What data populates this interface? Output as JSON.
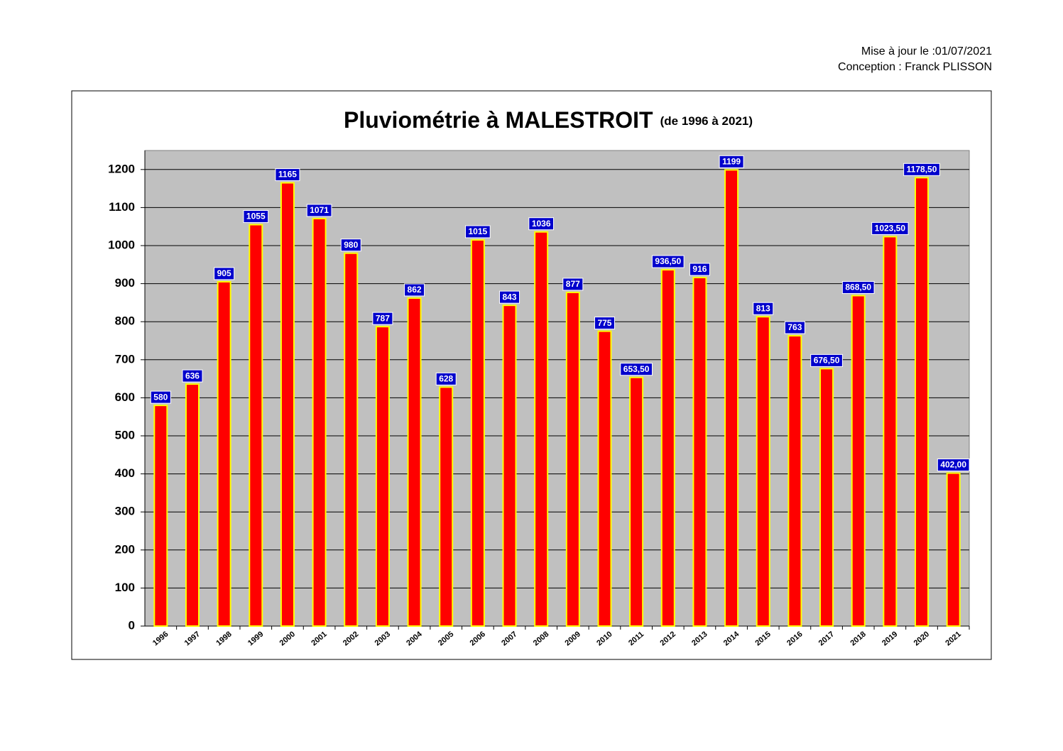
{
  "header": {
    "updated": "Mise à jour le :01/07/2021",
    "author": "Conception : Franck PLISSON"
  },
  "chart_data": {
    "type": "bar",
    "title": "Pluviométrie à MALESTROIT",
    "subtitle": "(de 1996 à 2021)",
    "categories": [
      "1996",
      "1997",
      "1998",
      "1999",
      "2000",
      "2001",
      "2002",
      "2003",
      "2004",
      "2005",
      "2006",
      "2007",
      "2008",
      "2009",
      "2010",
      "2011",
      "2012",
      "2013",
      "2014",
      "2015",
      "2016",
      "2017",
      "2018",
      "2019",
      "2020",
      "2021"
    ],
    "values": [
      580,
      636,
      905,
      1055,
      1165,
      1071,
      980,
      787,
      862,
      628,
      1015,
      843,
      1036,
      877,
      775,
      653.5,
      936.5,
      916,
      1199,
      813,
      763,
      676.5,
      868.5,
      1023.5,
      1178.5,
      402
    ],
    "value_labels": [
      "580",
      "636",
      "905",
      "1055",
      "1165",
      "1071",
      "980",
      "787",
      "862",
      "628",
      "1015",
      "843",
      "1036",
      "877",
      "775",
      "653,50",
      "936,50",
      "916",
      "1199",
      "813",
      "763",
      "676,50",
      "868,50",
      "1023,50",
      "1178,50",
      "402,00"
    ],
    "color": "#ff0000",
    "edge_color": "#ffff00",
    "label_color": "#0000cc",
    "plot_background": "#c0c0c0",
    "ylim": [
      0,
      1250
    ],
    "yticks": [
      0,
      100,
      200,
      300,
      400,
      500,
      600,
      700,
      800,
      900,
      1000,
      1100,
      1200
    ],
    "grid": true
  }
}
